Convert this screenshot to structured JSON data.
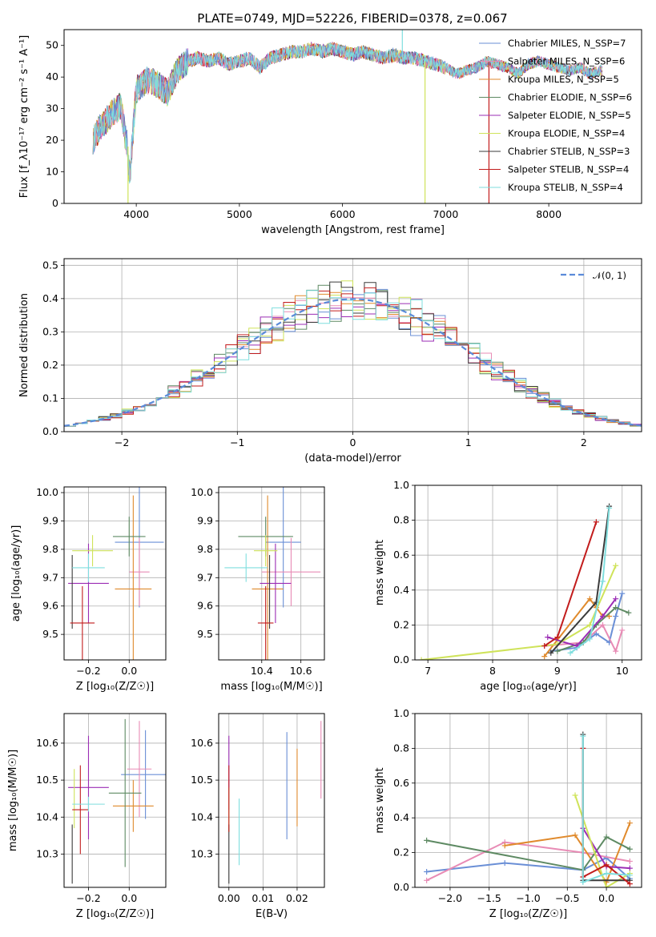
{
  "colors": {
    "chabrier_miles": "#6a8fd6",
    "salpeter_miles": "#e88bb5",
    "kroupa_miles": "#e08a2c",
    "chabrier_elodie": "#5e8a63",
    "salpeter_elodie": "#9b2db5",
    "kroupa_elodie": "#cfe35a",
    "chabrier_stelib": "#3b3b3b",
    "salpeter_stelib": "#c21c1c",
    "kroupa_stelib": "#7fdede"
  },
  "chart_data": [
    {
      "id": "spectrum",
      "type": "line",
      "title": "PLATE=0749, MJD=52226, FIBERID=0378, z=0.067",
      "xlabel": "wavelength [Angstrom, rest frame]",
      "ylabel": "Flux [f_λ10⁻¹⁷ erg cm⁻² s⁻¹ A⁻¹]",
      "xlim": [
        3300,
        8900
      ],
      "ylim": [
        0,
        55
      ],
      "xticks": [
        "4000",
        "5000",
        "6000",
        "7000",
        "8000"
      ],
      "yticks": [
        "0",
        "10",
        "20",
        "30",
        "40",
        "50"
      ],
      "grid": false,
      "legend_position": "top-right",
      "legend": [
        "Chabrier MILES, N_SSP=7",
        "Salpeter MILES, N_SSP=6",
        "Kroupa MILES, N_SSP=5",
        "Chabrier ELODIE, N_SSP=6",
        "Salpeter ELODIE, N_SSP=5",
        "Kroupa ELODIE, N_SSP=4",
        "Chabrier STELIB, N_SSP=3",
        "Salpeter STELIB, N_SSP=4",
        "Kroupa STELIB, N_SSP=4"
      ],
      "series_note": "Spectral envelope points (wavelength, flux)",
      "envelope": [
        [
          3580,
          20
        ],
        [
          3650,
          24
        ],
        [
          3750,
          28
        ],
        [
          3850,
          31
        ],
        [
          3900,
          20
        ],
        [
          3950,
          15
        ],
        [
          4000,
          36
        ],
        [
          4100,
          39
        ],
        [
          4200,
          38
        ],
        [
          4300,
          35
        ],
        [
          4400,
          42
        ],
        [
          4500,
          45
        ],
        [
          4600,
          46
        ],
        [
          4700,
          45
        ],
        [
          4800,
          46
        ],
        [
          4900,
          44
        ],
        [
          5000,
          45
        ],
        [
          5100,
          46
        ],
        [
          5200,
          43
        ],
        [
          5300,
          46
        ],
        [
          5400,
          47
        ],
        [
          5500,
          48
        ],
        [
          5600,
          48
        ],
        [
          5700,
          49
        ],
        [
          5800,
          48
        ],
        [
          5900,
          49
        ],
        [
          6000,
          48
        ],
        [
          6100,
          47
        ],
        [
          6200,
          48
        ],
        [
          6300,
          47
        ],
        [
          6400,
          46
        ],
        [
          6500,
          47
        ],
        [
          6600,
          46
        ],
        [
          6700,
          46
        ],
        [
          6800,
          45
        ],
        [
          6900,
          44
        ],
        [
          7000,
          43
        ],
        [
          7100,
          41
        ],
        [
          7200,
          42
        ],
        [
          7300,
          43
        ],
        [
          7400,
          45
        ],
        [
          7500,
          44
        ],
        [
          7600,
          43
        ],
        [
          7700,
          41
        ],
        [
          7800,
          44
        ],
        [
          7900,
          45
        ],
        [
          8000,
          44
        ],
        [
          8100,
          43
        ],
        [
          8200,
          42
        ],
        [
          8300,
          43
        ],
        [
          8400,
          41
        ],
        [
          8500,
          42
        ]
      ],
      "drops": [
        {
          "x": 3920,
          "to": 0,
          "color": "kroupa_elodie"
        },
        {
          "x": 6800,
          "to": 0,
          "color": "kroupa_elodie"
        },
        {
          "x": 7420,
          "to": 0,
          "color": "salpeter_stelib"
        },
        {
          "x": 6580,
          "to": 55,
          "color": "kroupa_stelib"
        }
      ]
    },
    {
      "id": "residuals",
      "type": "histogram",
      "xlabel": "(data-model)/error",
      "ylabel": "Normed distribution",
      "xlim": [
        -2.5,
        2.5
      ],
      "ylim": [
        0,
        0.52
      ],
      "xticks": [
        "−2",
        "−1",
        "0",
        "1",
        "2"
      ],
      "yticks": [
        "0.0",
        "0.1",
        "0.2",
        "0.3",
        "0.4",
        "0.5"
      ],
      "grid": true,
      "legend_position": "top-right",
      "legend": [
        "𝒩(0, 1)"
      ],
      "bin_width": 0.1,
      "bins_left_edge": -2.5
    },
    {
      "id": "age_vs_Z",
      "type": "errorbar",
      "xlabel": "Z [log₁₀(Z/Z☉)]",
      "ylabel": "age  [log₁₀(age/yr)]",
      "xlim": [
        -0.32,
        0.18
      ],
      "ylim": [
        9.41,
        10.02
      ],
      "xticks": [
        "−0.2",
        "0.0"
      ],
      "yticks": [
        "9.5",
        "9.6",
        "9.7",
        "9.8",
        "9.9",
        "10.0"
      ],
      "grid": true,
      "points": [
        {
          "c": "chabrier_miles",
          "x": 0.05,
          "xe": 0.12,
          "y": 9.825,
          "ye": 0.23
        },
        {
          "c": "salpeter_miles",
          "x": 0.05,
          "xe": 0.05,
          "y": 9.72,
          "ye": 0.12
        },
        {
          "c": "kroupa_miles",
          "x": 0.02,
          "xe": 0.09,
          "y": 9.66,
          "ye": 0.33
        },
        {
          "c": "chabrier_elodie",
          "x": 0.0,
          "xe": 0.08,
          "y": 9.845,
          "ye": 0.07
        },
        {
          "c": "salpeter_elodie",
          "x": -0.2,
          "xe": 0.1,
          "y": 9.68,
          "ye": 0.14
        },
        {
          "c": "kroupa_elodie",
          "x": -0.18,
          "xe": 0.1,
          "y": 9.795,
          "ye": 0.055
        },
        {
          "c": "chabrier_stelib",
          "x": -0.28,
          "xe": 0.0,
          "y": 9.65,
          "ye": 0.13
        },
        {
          "c": "salpeter_stelib",
          "x": -0.23,
          "xe": 0.06,
          "y": 9.54,
          "ye": 0.13
        },
        {
          "c": "kroupa_stelib",
          "x": -0.2,
          "xe": 0.08,
          "y": 9.735,
          "ye": 0.05
        }
      ]
    },
    {
      "id": "age_vs_mass",
      "type": "errorbar",
      "xlabel": "mass [log₁₀(M/M☉)]",
      "ylabel": "",
      "xlim": [
        10.18,
        10.72
      ],
      "ylim": [
        9.41,
        10.02
      ],
      "xticks": [
        "10.4",
        "10.6"
      ],
      "yticks": [
        "9.5",
        "9.6",
        "9.7",
        "9.8",
        "9.9",
        "10.0"
      ],
      "grid": true,
      "points": [
        {
          "c": "chabrier_miles",
          "x": 10.51,
          "xe": 0.09,
          "y": 9.825,
          "ye": 0.23
        },
        {
          "c": "salpeter_miles",
          "x": 10.55,
          "xe": 0.15,
          "y": 9.72,
          "ye": 0.12
        },
        {
          "c": "kroupa_miles",
          "x": 10.43,
          "xe": 0.08,
          "y": 9.66,
          "ye": 0.33
        },
        {
          "c": "chabrier_elodie",
          "x": 10.42,
          "xe": 0.14,
          "y": 9.845,
          "ye": 0.07
        },
        {
          "c": "salpeter_elodie",
          "x": 10.47,
          "xe": 0.08,
          "y": 9.68,
          "ye": 0.14
        },
        {
          "c": "kroupa_elodie",
          "x": 10.42,
          "xe": 0.06,
          "y": 9.795,
          "ye": 0.055
        },
        {
          "c": "chabrier_stelib",
          "x": 10.44,
          "xe": 0.0,
          "y": 9.65,
          "ye": 0.13
        },
        {
          "c": "salpeter_stelib",
          "x": 10.42,
          "xe": 0.04,
          "y": 9.54,
          "ye": 0.13
        },
        {
          "c": "kroupa_stelib",
          "x": 10.32,
          "xe": 0.11,
          "y": 9.735,
          "ye": 0.05
        }
      ]
    },
    {
      "id": "mass_weight_vs_age",
      "type": "line",
      "xlabel": "age  [log₁₀(age/yr)]",
      "ylabel": "mass weight",
      "xlim": [
        6.8,
        10.3
      ],
      "ylim": [
        0,
        1
      ],
      "xticks": [
        "7",
        "8",
        "9",
        "10"
      ],
      "yticks": [
        "0.0",
        "0.2",
        "0.4",
        "0.6",
        "0.8",
        "1.0"
      ],
      "grid": true,
      "series": [
        {
          "c": "chabrier_miles",
          "points": [
            [
              8.9,
              0.05
            ],
            [
              9.3,
              0.07
            ],
            [
              9.6,
              0.15
            ],
            [
              9.8,
              0.1
            ],
            [
              9.9,
              0.25
            ],
            [
              10.0,
              0.38
            ]
          ]
        },
        {
          "c": "salpeter_miles",
          "points": [
            [
              8.8,
              0.08
            ],
            [
              9.4,
              0.1
            ],
            [
              9.7,
              0.2
            ],
            [
              9.9,
              0.05
            ],
            [
              10.0,
              0.17
            ]
          ]
        },
        {
          "c": "kroupa_miles",
          "points": [
            [
              8.8,
              0.02
            ],
            [
              9.5,
              0.35
            ],
            [
              9.6,
              0.3
            ],
            [
              9.7,
              0.25
            ],
            [
              9.8,
              0.25
            ]
          ]
        },
        {
          "c": "chabrier_elodie",
          "points": [
            [
              9.0,
              0.05
            ],
            [
              9.4,
              0.1
            ],
            [
              9.6,
              0.2
            ],
            [
              9.9,
              0.3
            ],
            [
              10.1,
              0.27
            ]
          ]
        },
        {
          "c": "salpeter_elodie",
          "points": [
            [
              8.85,
              0.13
            ],
            [
              9.3,
              0.08
            ],
            [
              9.7,
              0.25
            ],
            [
              9.9,
              0.35
            ]
          ]
        },
        {
          "c": "kroupa_elodie",
          "points": [
            [
              6.9,
              0.0
            ],
            [
              9.0,
              0.09
            ],
            [
              9.5,
              0.2
            ],
            [
              9.9,
              0.54
            ]
          ]
        },
        {
          "c": "chabrier_stelib",
          "points": [
            [
              8.9,
              0.04
            ],
            [
              9.6,
              0.33
            ],
            [
              9.8,
              0.88
            ]
          ]
        },
        {
          "c": "salpeter_stelib",
          "points": [
            [
              8.8,
              0.08
            ],
            [
              9.0,
              0.13
            ],
            [
              9.6,
              0.79
            ]
          ]
        },
        {
          "c": "kroupa_stelib",
          "points": [
            [
              9.2,
              0.04
            ],
            [
              9.5,
              0.12
            ],
            [
              9.7,
              0.45
            ],
            [
              9.8,
              0.87
            ]
          ]
        }
      ]
    },
    {
      "id": "mass_vs_Z",
      "type": "errorbar",
      "xlabel": "Z [log₁₀(Z/Z☉)]",
      "ylabel": "mass [log₁₀(M/M☉)]",
      "xlim": [
        -0.32,
        0.18
      ],
      "ylim": [
        10.21,
        10.68
      ],
      "xticks": [
        "−0.2",
        "0.0"
      ],
      "yticks": [
        "10.3",
        "10.4",
        "10.5",
        "10.6"
      ],
      "grid": true,
      "points": [
        {
          "c": "chabrier_miles",
          "x": 0.08,
          "xe": 0.12,
          "y": 10.515,
          "ye": 0.12
        },
        {
          "c": "salpeter_miles",
          "x": 0.05,
          "xe": 0.06,
          "y": 10.53,
          "ye": 0.13
        },
        {
          "c": "kroupa_miles",
          "x": 0.02,
          "xe": 0.1,
          "y": 10.43,
          "ye": 0.07
        },
        {
          "c": "chabrier_elodie",
          "x": -0.02,
          "xe": 0.08,
          "y": 10.465,
          "ye": 0.2
        },
        {
          "c": "salpeter_elodie",
          "x": -0.2,
          "xe": 0.1,
          "y": 10.48,
          "ye": 0.14
        },
        {
          "c": "kroupa_elodie",
          "x": -0.27,
          "xe": 0.0,
          "y": 10.45,
          "ye": 0.08
        },
        {
          "c": "chabrier_stelib",
          "x": -0.28,
          "xe": 0.0,
          "y": 10.3,
          "ye": 0.08
        },
        {
          "c": "salpeter_stelib",
          "x": -0.24,
          "xe": 0.04,
          "y": 10.42,
          "ye": 0.12
        },
        {
          "c": "kroupa_stelib",
          "x": -0.2,
          "xe": 0.08,
          "y": 10.435,
          "ye": 0.02
        }
      ]
    },
    {
      "id": "mass_vs_ebv",
      "type": "errorbar",
      "xlabel": "E(B-V)",
      "ylabel": "",
      "xlim": [
        -0.003,
        0.028
      ],
      "ylim": [
        10.21,
        10.68
      ],
      "xticks": [
        "0.00",
        "0.01",
        "0.02"
      ],
      "yticks": [
        "10.3",
        "10.4",
        "10.5",
        "10.6"
      ],
      "grid": true,
      "points": [
        {
          "c": "chabrier_miles",
          "x": 0.017,
          "xe": 0.0,
          "y": 10.485,
          "ye": 0.145
        },
        {
          "c": "salpeter_miles",
          "x": 0.027,
          "xe": 0.0,
          "y": 10.555,
          "ye": 0.105
        },
        {
          "c": "kroupa_miles",
          "x": 0.02,
          "xe": 0.0,
          "y": 10.48,
          "ye": 0.105
        },
        {
          "c": "salpeter_elodie",
          "x": 0.0,
          "xe": 0.0,
          "y": 10.52,
          "ye": 0.1
        },
        {
          "c": "kroupa_elodie",
          "x": 0.0,
          "xe": 0.0,
          "y": 10.42,
          "ye": 0.06
        },
        {
          "c": "chabrier_stelib",
          "x": 0.0,
          "xe": 0.0,
          "y": 10.3,
          "ye": 0.08
        },
        {
          "c": "salpeter_stelib",
          "x": 0.0,
          "xe": 0.0,
          "y": 10.45,
          "ye": 0.09
        },
        {
          "c": "kroupa_stelib",
          "x": 0.003,
          "xe": 0.0,
          "y": 10.36,
          "ye": 0.09
        }
      ]
    },
    {
      "id": "mass_weight_vs_Z",
      "type": "line",
      "xlabel": "Z [log₁₀(Z/Z☉)]",
      "ylabel": "mass weight",
      "xlim": [
        -2.45,
        0.45
      ],
      "ylim": [
        0,
        1
      ],
      "xticks": [
        "−2.0",
        "−1.5",
        "−1.0",
        "−0.5",
        "0.0"
      ],
      "yticks": [
        "0.0",
        "0.2",
        "0.4",
        "0.6",
        "0.8",
        "1.0"
      ],
      "grid": true,
      "series": [
        {
          "c": "chabrier_miles",
          "points": [
            [
              -2.3,
              0.09
            ],
            [
              -1.3,
              0.14
            ],
            [
              -0.3,
              0.1
            ],
            [
              0.0,
              0.17
            ],
            [
              0.3,
              0.05
            ]
          ]
        },
        {
          "c": "salpeter_miles",
          "points": [
            [
              -2.3,
              0.04
            ],
            [
              -1.3,
              0.26
            ],
            [
              -0.3,
              0.2
            ],
            [
              0.3,
              0.15
            ]
          ]
        },
        {
          "c": "kroupa_miles",
          "points": [
            [
              -1.3,
              0.24
            ],
            [
              -0.4,
              0.3
            ],
            [
              0.0,
              0.03
            ],
            [
              0.3,
              0.37
            ]
          ]
        },
        {
          "c": "chabrier_elodie",
          "points": [
            [
              -2.3,
              0.27
            ],
            [
              -0.3,
              0.1
            ],
            [
              0.0,
              0.29
            ],
            [
              0.3,
              0.22
            ]
          ]
        },
        {
          "c": "salpeter_elodie",
          "points": [
            [
              -0.3,
              0.34
            ],
            [
              0.0,
              0.12
            ],
            [
              0.3,
              0.11
            ]
          ]
        },
        {
          "c": "kroupa_elodie",
          "points": [
            [
              -0.4,
              0.53
            ],
            [
              0.0,
              0.0
            ],
            [
              0.3,
              0.08
            ]
          ]
        },
        {
          "c": "chabrier_stelib",
          "points": [
            [
              -0.3,
              0.88
            ],
            [
              -0.3,
              0.04
            ],
            [
              0.3,
              0.04
            ]
          ]
        },
        {
          "c": "salpeter_stelib",
          "points": [
            [
              -0.3,
              0.8
            ],
            [
              -0.3,
              0.06
            ],
            [
              0.0,
              0.13
            ],
            [
              0.3,
              0.02
            ]
          ]
        },
        {
          "c": "kroupa_stelib",
          "points": [
            [
              -0.3,
              0.87
            ],
            [
              -0.3,
              0.03
            ],
            [
              0.0,
              0.08
            ],
            [
              0.3,
              0.07
            ]
          ]
        }
      ]
    }
  ]
}
